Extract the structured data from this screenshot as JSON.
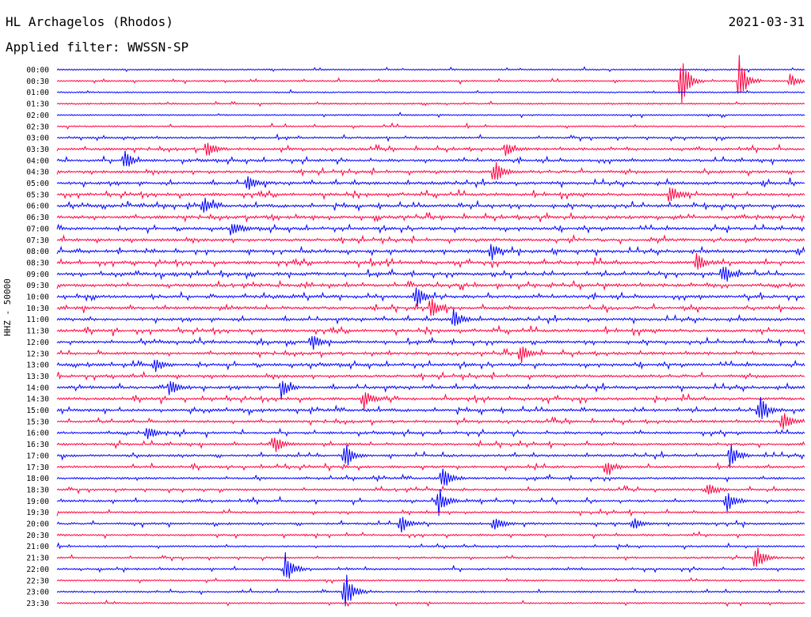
{
  "header": {
    "station": "HL Archagelos (Rhodos)",
    "date": "2021-03-31",
    "filter": "Applied filter: WWSSN-SP"
  },
  "chart_data": {
    "type": "line",
    "title": "HL Archagelos (Rhodos)",
    "ylabel": "HHZ - 50000",
    "rows": [
      "00:00",
      "00:30",
      "01:00",
      "01:30",
      "02:00",
      "02:30",
      "03:00",
      "03:30",
      "04:00",
      "04:30",
      "05:00",
      "05:30",
      "06:00",
      "06:30",
      "07:00",
      "07:30",
      "08:00",
      "08:30",
      "09:00",
      "09:30",
      "10:00",
      "10:30",
      "11:00",
      "11:30",
      "12:00",
      "12:30",
      "13:00",
      "13:30",
      "14:00",
      "14:30",
      "15:00",
      "15:30",
      "16:00",
      "16:30",
      "17:00",
      "17:30",
      "18:00",
      "18:30",
      "19:00",
      "19:30",
      "20:00",
      "20:30",
      "21:00",
      "21:30",
      "22:00",
      "22:30",
      "23:00",
      "23:30"
    ],
    "colors": {
      "even": "#0000ff",
      "odd": "#ff0040"
    },
    "activity_per_row": [
      0.15,
      0.2,
      0.15,
      0.2,
      0.15,
      0.2,
      0.3,
      0.45,
      0.5,
      0.55,
      0.6,
      0.6,
      0.65,
      0.65,
      0.6,
      0.6,
      0.65,
      0.65,
      0.65,
      0.65,
      0.6,
      0.65,
      0.6,
      0.6,
      0.55,
      0.55,
      0.6,
      0.55,
      0.6,
      0.55,
      0.6,
      0.45,
      0.45,
      0.45,
      0.45,
      0.4,
      0.4,
      0.35,
      0.4,
      0.35,
      0.35,
      0.3,
      0.25,
      0.25,
      0.3,
      0.25,
      0.25,
      0.2
    ],
    "events": [
      {
        "row": 1,
        "t": 0.835,
        "amp": 34
      },
      {
        "row": 1,
        "t": 0.912,
        "amp": 36
      },
      {
        "row": 1,
        "t": 0.98,
        "amp": 10
      },
      {
        "row": 7,
        "t": 0.2,
        "amp": 12
      },
      {
        "row": 7,
        "t": 0.6,
        "amp": 10
      },
      {
        "row": 8,
        "t": 0.09,
        "amp": 14
      },
      {
        "row": 9,
        "t": 0.585,
        "amp": 18
      },
      {
        "row": 10,
        "t": 0.255,
        "amp": 12
      },
      {
        "row": 11,
        "t": 0.82,
        "amp": 16
      },
      {
        "row": 12,
        "t": 0.195,
        "amp": 12
      },
      {
        "row": 14,
        "t": 0.235,
        "amp": 10
      },
      {
        "row": 16,
        "t": 0.58,
        "amp": 12
      },
      {
        "row": 17,
        "t": 0.855,
        "amp": 14
      },
      {
        "row": 18,
        "t": 0.89,
        "amp": 14
      },
      {
        "row": 20,
        "t": 0.48,
        "amp": 16
      },
      {
        "row": 21,
        "t": 0.5,
        "amp": 14
      },
      {
        "row": 22,
        "t": 0.53,
        "amp": 16
      },
      {
        "row": 24,
        "t": 0.34,
        "amp": 12
      },
      {
        "row": 25,
        "t": 0.62,
        "amp": 14
      },
      {
        "row": 26,
        "t": 0.13,
        "amp": 12
      },
      {
        "row": 28,
        "t": 0.15,
        "amp": 16
      },
      {
        "row": 28,
        "t": 0.3,
        "amp": 14
      },
      {
        "row": 29,
        "t": 0.41,
        "amp": 14
      },
      {
        "row": 30,
        "t": 0.94,
        "amp": 20
      },
      {
        "row": 31,
        "t": 0.97,
        "amp": 16
      },
      {
        "row": 32,
        "t": 0.12,
        "amp": 12
      },
      {
        "row": 33,
        "t": 0.29,
        "amp": 14
      },
      {
        "row": 34,
        "t": 0.385,
        "amp": 18
      },
      {
        "row": 34,
        "t": 0.9,
        "amp": 16
      },
      {
        "row": 35,
        "t": 0.735,
        "amp": 10
      },
      {
        "row": 36,
        "t": 0.515,
        "amp": 18
      },
      {
        "row": 37,
        "t": 0.87,
        "amp": 10
      },
      {
        "row": 38,
        "t": 0.51,
        "amp": 20
      },
      {
        "row": 38,
        "t": 0.895,
        "amp": 18
      },
      {
        "row": 40,
        "t": 0.46,
        "amp": 14
      },
      {
        "row": 40,
        "t": 0.585,
        "amp": 14
      },
      {
        "row": 40,
        "t": 0.77,
        "amp": 10
      },
      {
        "row": 43,
        "t": 0.935,
        "amp": 18
      },
      {
        "row": 44,
        "t": 0.305,
        "amp": 22
      },
      {
        "row": 46,
        "t": 0.385,
        "amp": 30
      }
    ]
  }
}
